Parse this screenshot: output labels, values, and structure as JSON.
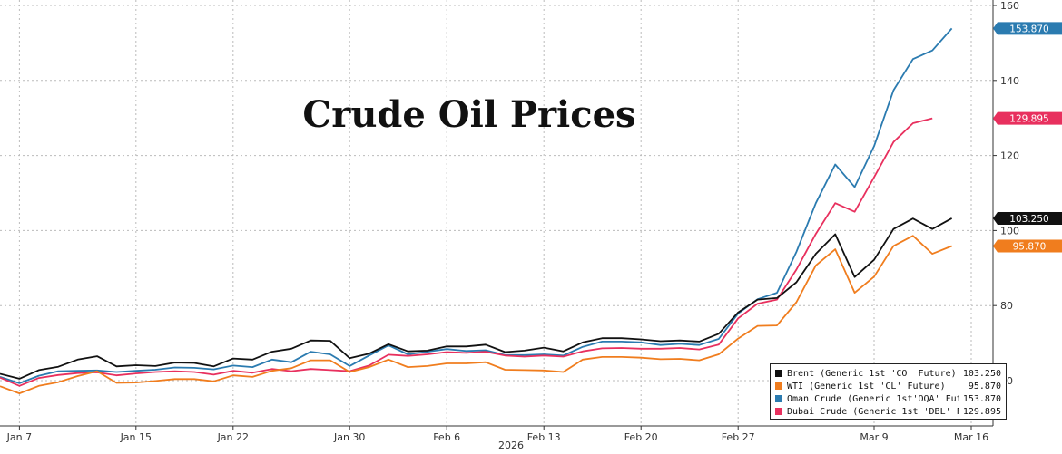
{
  "chart_data": {
    "type": "line",
    "title": "Crude Oil Prices",
    "year_label": "2026",
    "x_tick_labels": [
      "Jan 7",
      "Jan 15",
      "Jan 22",
      "Jan 30",
      "Feb 6",
      "Feb 13",
      "Feb 20",
      "Feb 27",
      "Mar 9",
      "Mar 16"
    ],
    "x_tick_index": [
      1,
      7,
      12,
      18,
      23,
      28,
      33,
      38,
      45,
      50
    ],
    "y_ticks": [
      60,
      80,
      100,
      120,
      140,
      160
    ],
    "ylim": [
      50,
      162
    ],
    "grid": true,
    "legend_position": "bottom-right",
    "series": [
      {
        "name": "Brent (Generic 1st 'CO' Future)",
        "color": "#111111",
        "last_label": "103.250",
        "values": [
          61.8,
          60.5,
          62.8,
          63.7,
          65.6,
          66.5,
          63.8,
          64.1,
          63.9,
          64.8,
          64.7,
          63.8,
          65.9,
          65.6,
          67.7,
          68.5,
          70.7,
          70.6,
          66.0,
          67.2,
          69.7,
          67.8,
          68.0,
          69.1,
          69.1,
          69.6,
          67.6,
          68.0,
          68.8,
          67.8,
          70.2,
          71.3,
          71.3,
          71.0,
          70.5,
          70.7,
          70.4,
          72.5,
          78.2,
          81.6,
          82.0,
          86.2,
          93.8,
          99.0,
          87.6,
          92.2,
          100.4,
          103.2,
          100.4,
          103.25
        ]
      },
      {
        "name": "WTI (Generic 1st 'CL' Future)",
        "color": "#f07d1e",
        "last_label": "95.870",
        "values": [
          58.5,
          56.6,
          58.6,
          59.6,
          61.2,
          62.5,
          59.4,
          59.5,
          59.9,
          60.4,
          60.4,
          59.8,
          61.4,
          61.0,
          62.6,
          63.3,
          65.4,
          65.4,
          62.3,
          63.6,
          65.6,
          63.6,
          63.9,
          64.6,
          64.6,
          64.9,
          62.9,
          62.8,
          62.7,
          62.3,
          65.6,
          66.3,
          66.3,
          66.1,
          65.7,
          65.8,
          65.4,
          67.0,
          71.2,
          74.6,
          74.7,
          80.9,
          90.7,
          95.0,
          83.4,
          87.7,
          95.9,
          98.6,
          93.8,
          95.87
        ]
      },
      {
        "name": "Oman Crude (Generic 1st'OQA' Future)",
        "color": "#2b7bb0",
        "last_label": "153.870",
        "values": [
          61.0,
          59.3,
          61.3,
          62.5,
          62.6,
          62.7,
          62.3,
          62.6,
          62.9,
          63.5,
          63.4,
          63.0,
          64.0,
          63.6,
          65.6,
          64.9,
          67.7,
          67.0,
          63.9,
          66.7,
          69.4,
          67.0,
          67.7,
          68.4,
          67.9,
          68.1,
          66.8,
          66.8,
          67.0,
          66.7,
          69.0,
          70.4,
          70.4,
          70.2,
          69.5,
          69.8,
          69.5,
          71.1,
          77.9,
          81.7,
          83.4,
          94.3,
          107.3,
          117.6,
          111.6,
          122.5,
          137.4,
          145.7,
          148.0,
          153.87
        ]
      },
      {
        "name": "Dubai Crude (Generic 1st 'DBL' Future)",
        "color": "#e8305e",
        "last_label": "129.895",
        "values": [
          60.8,
          58.6,
          60.7,
          61.5,
          62.0,
          62.2,
          61.4,
          61.9,
          62.3,
          62.5,
          62.3,
          61.6,
          62.6,
          62.1,
          63.1,
          62.5,
          63.1,
          62.8,
          62.5,
          64.0,
          66.9,
          66.6,
          67.0,
          67.6,
          67.4,
          67.7,
          66.7,
          66.4,
          66.7,
          66.4,
          67.8,
          68.6,
          68.7,
          68.5,
          68.5,
          68.7,
          68.3,
          69.6,
          76.6,
          80.5,
          81.6,
          89.6,
          99.1,
          107.3,
          105.0,
          114.2,
          123.6,
          128.6,
          129.895,
          null
        ]
      }
    ]
  },
  "legend": {
    "rows": [
      {
        "name": "Brent (Generic 1st 'CO' Future)",
        "value": "103.250",
        "color": "#111111"
      },
      {
        "name": "WTI (Generic 1st 'CL' Future)",
        "value": "95.870",
        "color": "#f07d1e"
      },
      {
        "name": "Oman Crude (Generic 1st'OQA' Future)",
        "value": "153.870",
        "color": "#2b7bb0"
      },
      {
        "name": "Dubai Crude (Generic 1st 'DBL' Future)",
        "value": "129.895",
        "color": "#e8305e"
      }
    ]
  }
}
